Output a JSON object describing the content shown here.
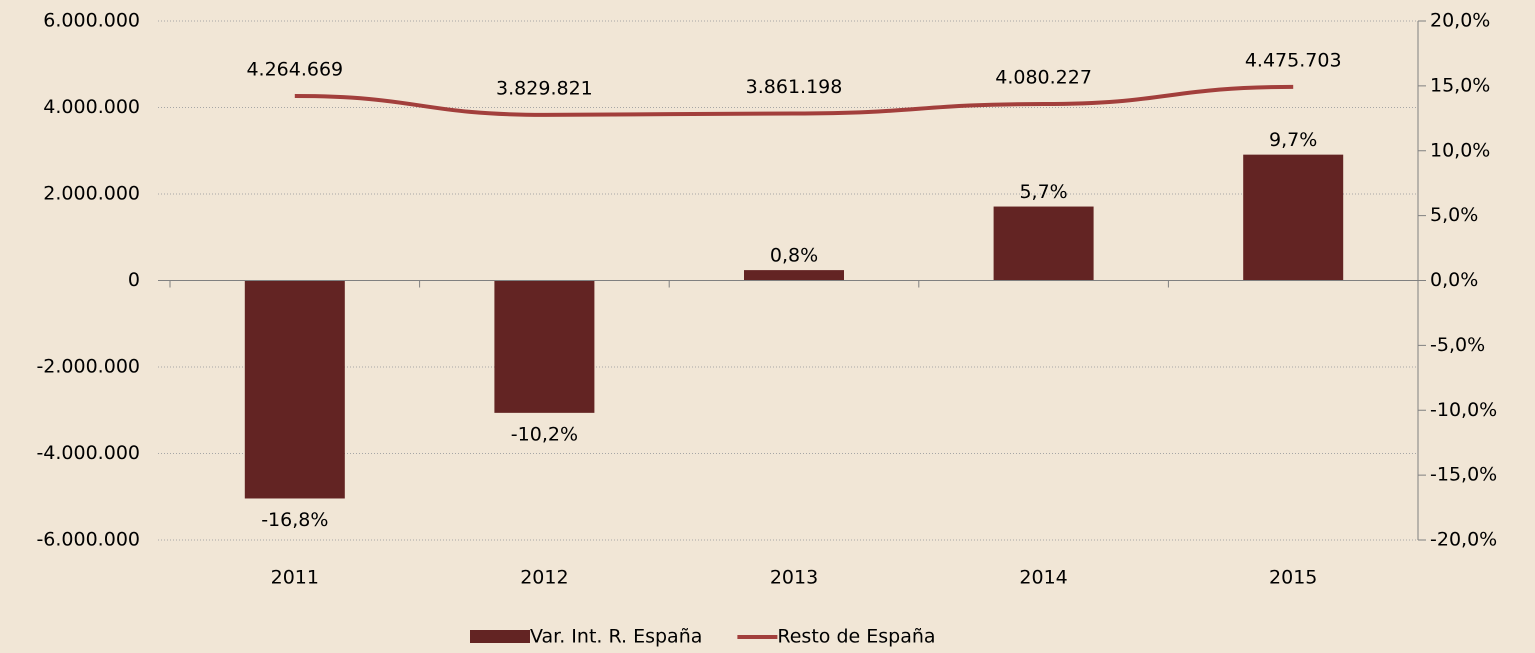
{
  "chart_data": {
    "type": "bar_line",
    "categories": [
      "2011",
      "2012",
      "2013",
      "2014",
      "2015"
    ],
    "series": [
      {
        "name": "Var. Int. R. España",
        "type": "bar",
        "axis": "y2",
        "color": "#632423",
        "values": [
          -16.8,
          -10.2,
          0.8,
          5.7,
          9.7
        ],
        "value_labels": [
          "-16,8%",
          "-10,2%",
          "0,8%",
          "5,7%",
          "9,7%"
        ]
      },
      {
        "name": "Resto de España",
        "type": "line",
        "axis": "y",
        "color": "#a23f3c",
        "values": [
          4264669,
          3829821,
          3861198,
          4080227,
          4475703
        ],
        "value_labels": [
          "4.264.669",
          "3.829.821",
          "3.861.198",
          "4.080.227",
          "4.475.703"
        ]
      }
    ],
    "ylim": [
      -6000000,
      6000000
    ],
    "yticks": [
      {
        "value": -6000000,
        "label": "-6.000.000"
      },
      {
        "value": -4000000,
        "label": "-4.000.000"
      },
      {
        "value": -2000000,
        "label": "-2.000.000"
      },
      0,
      {
        "value": 2000000,
        "label": "2.000.000"
      },
      {
        "value": 4000000,
        "label": "4.000.000"
      },
      {
        "value": 6000000,
        "label": "6.000.000"
      }
    ],
    "y2lim": [
      -20,
      20
    ],
    "y2ticks": [
      {
        "value": -20,
        "label": "-20,0%"
      },
      {
        "value": -15,
        "label": "-15,0%"
      },
      {
        "value": -10,
        "label": "-10,0%"
      },
      {
        "value": -5,
        "label": "-5,0%"
      },
      {
        "value": 0,
        "label": "0,0%"
      },
      {
        "value": 5,
        "label": "5,0%"
      },
      {
        "value": 10,
        "label": "10,0%"
      },
      {
        "value": 15,
        "label": "15,0%"
      },
      {
        "value": 20,
        "label": "20,0%"
      }
    ],
    "grid": true,
    "legend": "bottom"
  }
}
